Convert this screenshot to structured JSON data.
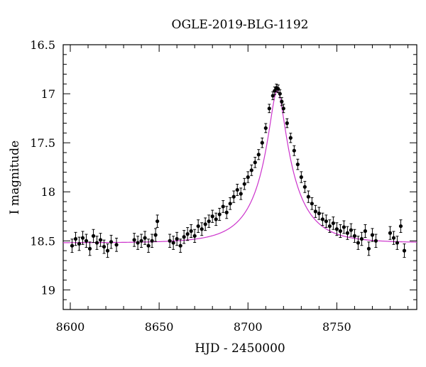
{
  "chart_data": {
    "type": "scatter",
    "title": "OGLE-2019-BLG-1192",
    "xlabel": "HJD - 2450000",
    "ylabel": "I magnitude",
    "xlim": [
      8596,
      8795
    ],
    "ylim": [
      19.2,
      16.5
    ],
    "y_inverted": true,
    "x_ticks": [
      "8600",
      "8650",
      "8700",
      "8750"
    ],
    "y_ticks": [
      "16.5",
      "17",
      "17.5",
      "18",
      "18.5",
      "19"
    ],
    "grid": false,
    "legend": "none",
    "model": {
      "kind": "point-lens fit",
      "t0": 8716.5,
      "baseline_mag": 18.52,
      "peak_mag": 16.97,
      "color": "#cc33cc"
    },
    "series": [
      {
        "marker_color": "#000000",
        "points": [
          {
            "x": 8601,
            "y": 18.55
          },
          {
            "x": 8603,
            "y": 18.48
          },
          {
            "x": 8605,
            "y": 18.53
          },
          {
            "x": 8607,
            "y": 18.47
          },
          {
            "x": 8609,
            "y": 18.5
          },
          {
            "x": 8611,
            "y": 18.58
          },
          {
            "x": 8613,
            "y": 18.45
          },
          {
            "x": 8615,
            "y": 18.52
          },
          {
            "x": 8617,
            "y": 18.49
          },
          {
            "x": 8619,
            "y": 18.56
          },
          {
            "x": 8621,
            "y": 18.6
          },
          {
            "x": 8623,
            "y": 18.51
          },
          {
            "x": 8626,
            "y": 18.54
          },
          {
            "x": 8636,
            "y": 18.49
          },
          {
            "x": 8638,
            "y": 18.52
          },
          {
            "x": 8640,
            "y": 18.5
          },
          {
            "x": 8642,
            "y": 18.47
          },
          {
            "x": 8644,
            "y": 18.55
          },
          {
            "x": 8646,
            "y": 18.5
          },
          {
            "x": 8648,
            "y": 18.44
          },
          {
            "x": 8649,
            "y": 18.3
          },
          {
            "x": 8656,
            "y": 18.5
          },
          {
            "x": 8658,
            "y": 18.52
          },
          {
            "x": 8660,
            "y": 18.48
          },
          {
            "x": 8662,
            "y": 18.55
          },
          {
            "x": 8664,
            "y": 18.46
          },
          {
            "x": 8666,
            "y": 18.43
          },
          {
            "x": 8668,
            "y": 18.4
          },
          {
            "x": 8670,
            "y": 18.45
          },
          {
            "x": 8672,
            "y": 18.35
          },
          {
            "x": 8674,
            "y": 18.38
          },
          {
            "x": 8676,
            "y": 18.33
          },
          {
            "x": 8678,
            "y": 18.3
          },
          {
            "x": 8680,
            "y": 18.25
          },
          {
            "x": 8682,
            "y": 18.28
          },
          {
            "x": 8684,
            "y": 18.23
          },
          {
            "x": 8686,
            "y": 18.15
          },
          {
            "x": 8688,
            "y": 18.21
          },
          {
            "x": 8690,
            "y": 18.12
          },
          {
            "x": 8692,
            "y": 18.05
          },
          {
            "x": 8694,
            "y": 17.98
          },
          {
            "x": 8696,
            "y": 18.02
          },
          {
            "x": 8698,
            "y": 17.92
          },
          {
            "x": 8700,
            "y": 17.85
          },
          {
            "x": 8702,
            "y": 17.78
          },
          {
            "x": 8704,
            "y": 17.7
          },
          {
            "x": 8706,
            "y": 17.62
          },
          {
            "x": 8708,
            "y": 17.5
          },
          {
            "x": 8710,
            "y": 17.35
          },
          {
            "x": 8712,
            "y": 17.15
          },
          {
            "x": 8714,
            "y": 17.02
          },
          {
            "x": 8715,
            "y": 16.97
          },
          {
            "x": 8716,
            "y": 16.94
          },
          {
            "x": 8717,
            "y": 16.95
          },
          {
            "x": 8718,
            "y": 17.0
          },
          {
            "x": 8719,
            "y": 17.08
          },
          {
            "x": 8720,
            "y": 17.15
          },
          {
            "x": 8722,
            "y": 17.3
          },
          {
            "x": 8724,
            "y": 17.45
          },
          {
            "x": 8726,
            "y": 17.58
          },
          {
            "x": 8728,
            "y": 17.72
          },
          {
            "x": 8730,
            "y": 17.85
          },
          {
            "x": 8732,
            "y": 17.95
          },
          {
            "x": 8734,
            "y": 18.05
          },
          {
            "x": 8736,
            "y": 18.12
          },
          {
            "x": 8738,
            "y": 18.2
          },
          {
            "x": 8740,
            "y": 18.22
          },
          {
            "x": 8742,
            "y": 18.28
          },
          {
            "x": 8744,
            "y": 18.3
          },
          {
            "x": 8746,
            "y": 18.35
          },
          {
            "x": 8748,
            "y": 18.32
          },
          {
            "x": 8750,
            "y": 18.38
          },
          {
            "x": 8752,
            "y": 18.4
          },
          {
            "x": 8754,
            "y": 18.36
          },
          {
            "x": 8756,
            "y": 18.42
          },
          {
            "x": 8758,
            "y": 18.39
          },
          {
            "x": 8760,
            "y": 18.45
          },
          {
            "x": 8762,
            "y": 18.52
          },
          {
            "x": 8764,
            "y": 18.48
          },
          {
            "x": 8766,
            "y": 18.4
          },
          {
            "x": 8768,
            "y": 18.58
          },
          {
            "x": 8770,
            "y": 18.44
          },
          {
            "x": 8772,
            "y": 18.5
          },
          {
            "x": 8780,
            "y": 18.42
          },
          {
            "x": 8782,
            "y": 18.47
          },
          {
            "x": 8784,
            "y": 18.52
          },
          {
            "x": 8786,
            "y": 18.35
          },
          {
            "x": 8788,
            "y": 18.6
          }
        ]
      }
    ]
  }
}
